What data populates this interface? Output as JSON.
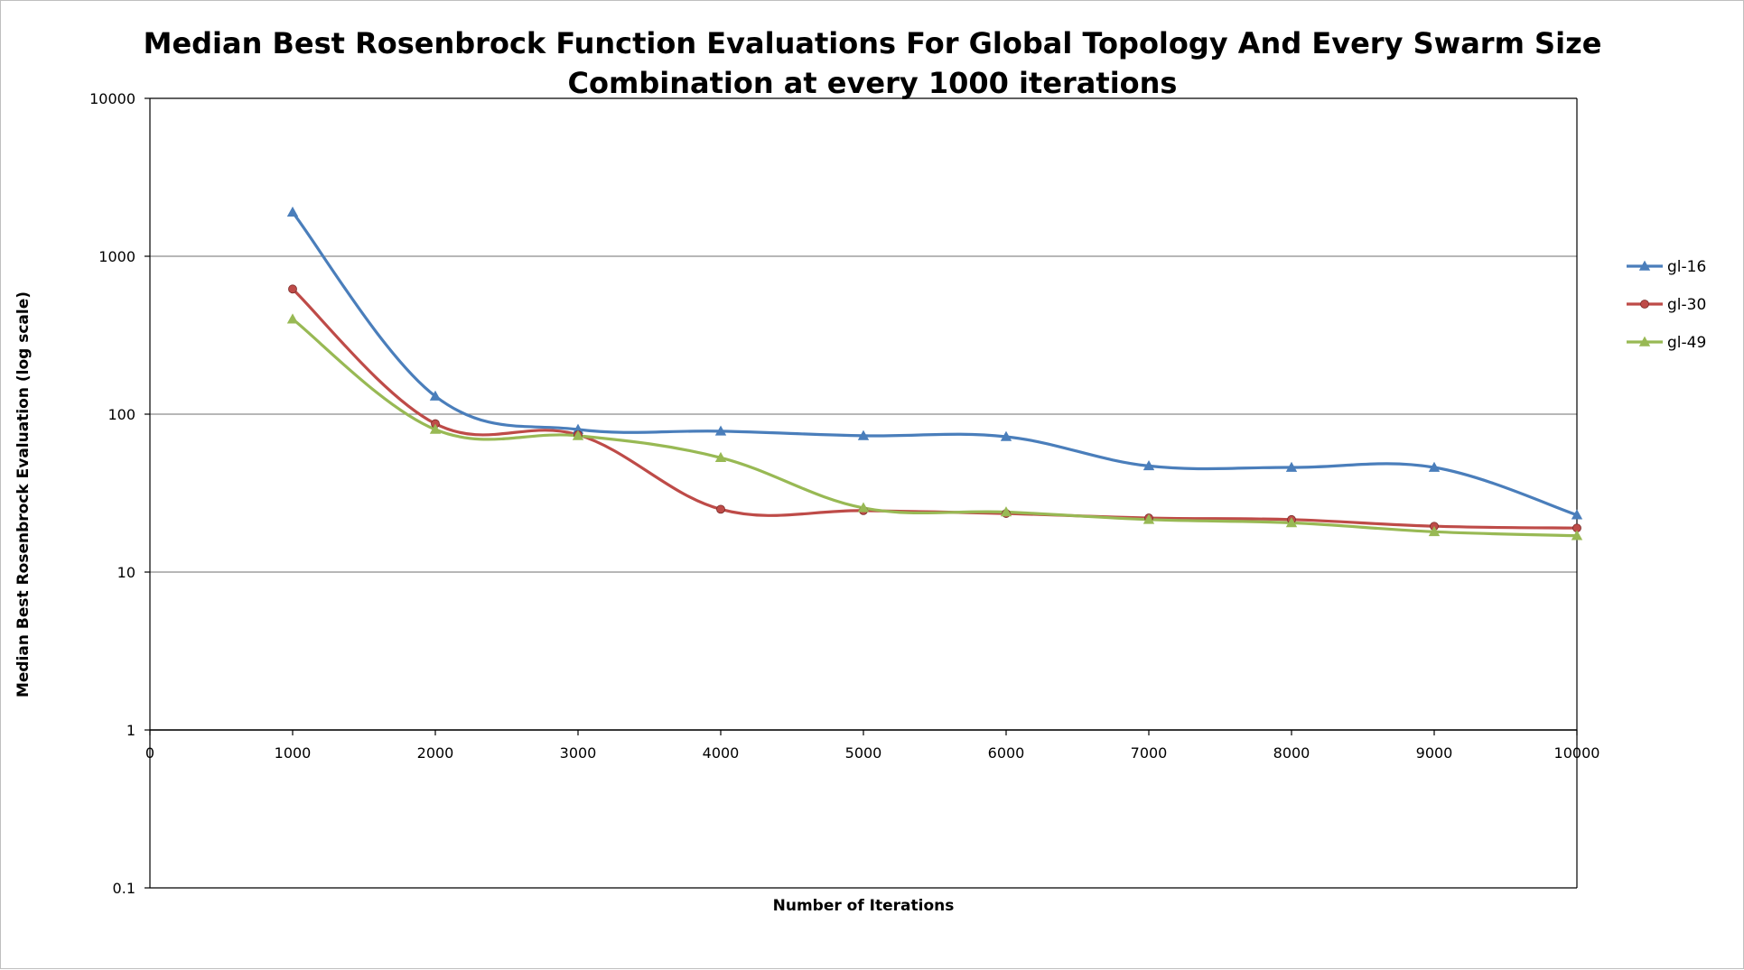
{
  "chart_data": {
    "type": "line",
    "title_lines": [
      "Median Best Rosenbrock Function Evaluations For Global Topology And Every Swarm Size",
      "Combination at every 1000 iterations"
    ],
    "xlabel": "Number of Iterations",
    "ylabel": "Median Best Rosenbrock Evaluation (log scale)",
    "y_scale": "log",
    "ylim": [
      0.1,
      10000
    ],
    "xlim": [
      0,
      10000
    ],
    "y_ticks": [
      {
        "value": 0.1,
        "label": "0.1"
      },
      {
        "value": 1,
        "label": "1"
      },
      {
        "value": 10,
        "label": "10"
      },
      {
        "value": 100,
        "label": "100"
      },
      {
        "value": 1000,
        "label": "1000"
      },
      {
        "value": 10000,
        "label": "10000"
      }
    ],
    "x_ticks": [
      {
        "value": 0,
        "label": "0"
      },
      {
        "value": 1000,
        "label": "1000"
      },
      {
        "value": 2000,
        "label": "2000"
      },
      {
        "value": 3000,
        "label": "3000"
      },
      {
        "value": 4000,
        "label": "4000"
      },
      {
        "value": 5000,
        "label": "5000"
      },
      {
        "value": 6000,
        "label": "6000"
      },
      {
        "value": 7000,
        "label": "7000"
      },
      {
        "value": 8000,
        "label": "8000"
      },
      {
        "value": 9000,
        "label": "9000"
      },
      {
        "value": 10000,
        "label": "10000"
      }
    ],
    "gridlines": "horizontal",
    "legend_position": "right",
    "x": [
      1000,
      2000,
      3000,
      4000,
      5000,
      6000,
      7000,
      8000,
      9000,
      10000
    ],
    "series": [
      {
        "name": "gl-16",
        "color": "#4a7ebb",
        "marker": "triangle",
        "values": [
          1900,
          130,
          80,
          78,
          73,
          72,
          47,
          46,
          46,
          23
        ]
      },
      {
        "name": "gl-30",
        "color": "#be4b48",
        "marker": "circle",
        "values": [
          620,
          87,
          74,
          25,
          24.5,
          23.5,
          22,
          21.5,
          19.5,
          19
        ]
      },
      {
        "name": "gl-49",
        "color": "#98b954",
        "marker": "triangle",
        "values": [
          400,
          80,
          73,
          53,
          25.5,
          24,
          21.5,
          20.5,
          18,
          17
        ]
      }
    ]
  }
}
